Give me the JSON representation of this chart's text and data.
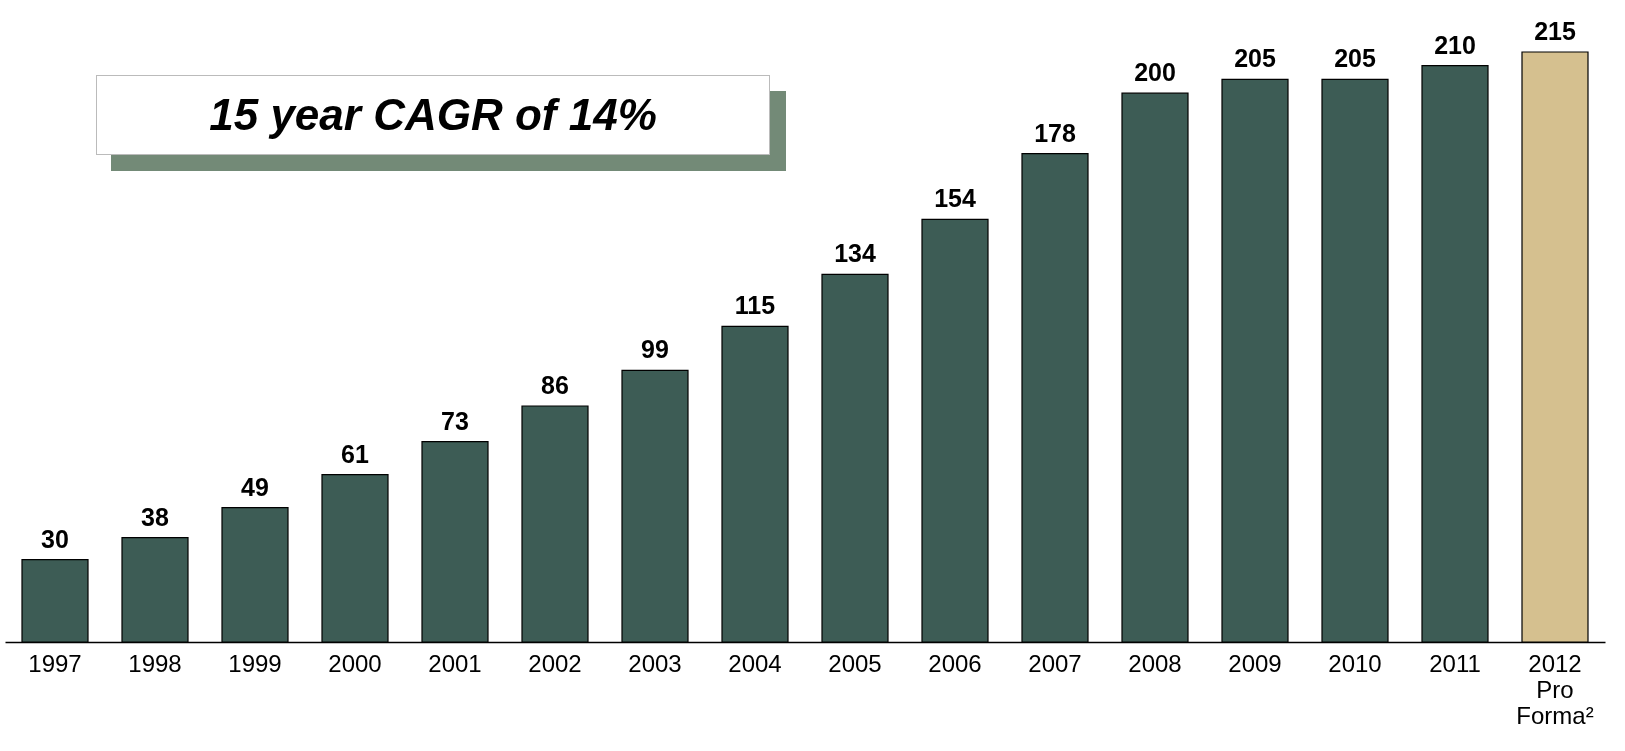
{
  "chart_data": {
    "type": "bar",
    "categories": [
      "1997",
      "1998",
      "1999",
      "2000",
      "2001",
      "2002",
      "2003",
      "2004",
      "2005",
      "2006",
      "2007",
      "2008",
      "2009",
      "2010",
      "2011",
      "2012 Pro Forma²"
    ],
    "values": [
      30,
      38,
      49,
      61,
      73,
      86,
      99,
      115,
      134,
      154,
      178,
      200,
      205,
      205,
      210,
      215
    ],
    "colors": [
      "#3d5c55",
      "#3d5c55",
      "#3d5c55",
      "#3d5c55",
      "#3d5c55",
      "#3d5c55",
      "#3d5c55",
      "#3d5c55",
      "#3d5c55",
      "#3d5c55",
      "#3d5c55",
      "#3d5c55",
      "#3d5c55",
      "#3d5c55",
      "#3d5c55",
      "#d5c08f"
    ],
    "data_labels": true,
    "grid": false,
    "legend": false,
    "annotations": [
      "15 year CAGR of 14%"
    ]
  }
}
